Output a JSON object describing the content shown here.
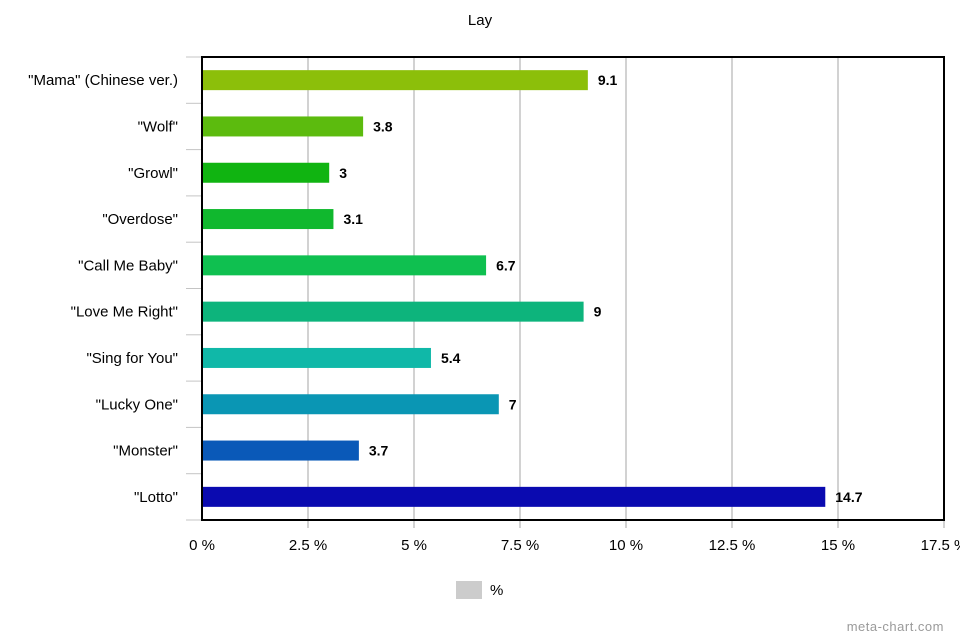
{
  "chart_data": {
    "type": "bar",
    "orientation": "horizontal",
    "title": "Lay",
    "categories": [
      "\"Mama\" (Chinese ver.)",
      "\"Wolf\"",
      "\"Growl\"",
      "\"Overdose\"",
      "\"Call Me Baby\"",
      "\"Love Me Right\"",
      "\"Sing for You\"",
      "\"Lucky One\"",
      "\"Monster\"",
      "\"Lotto\""
    ],
    "series": [
      {
        "name": "%",
        "values": [
          9.1,
          3.8,
          3,
          3.1,
          6.7,
          9,
          5.4,
          7,
          3.7,
          14.7
        ]
      }
    ],
    "data_labels": [
      "9.1",
      "3.8",
      "3",
      "3.1",
      "6.7",
      "9",
      "5.4",
      "7",
      "3.7",
      "14.7"
    ],
    "xlim": [
      0,
      17.5
    ],
    "x_ticks": [
      0,
      2.5,
      5,
      7.5,
      10,
      12.5,
      15,
      17.5
    ],
    "x_tick_labels": [
      "0 %",
      "2.5 %",
      "5 %",
      "7.5 %",
      "10 %",
      "12.5 %",
      "15 %",
      "17.5 %"
    ],
    "grid": true,
    "legend_position": "bottom-center",
    "bar_colors": [
      "#8cbf0a",
      "#5cbb0e",
      "#10b411",
      "#10b82e",
      "#0fc050",
      "#0db47c",
      "#10b8a8",
      "#0a96b4",
      "#0a59b8",
      "#0a0ab0"
    ]
  },
  "legend": {
    "label": "%",
    "swatch_color": "#cccccc"
  },
  "credit": "meta-chart.com"
}
